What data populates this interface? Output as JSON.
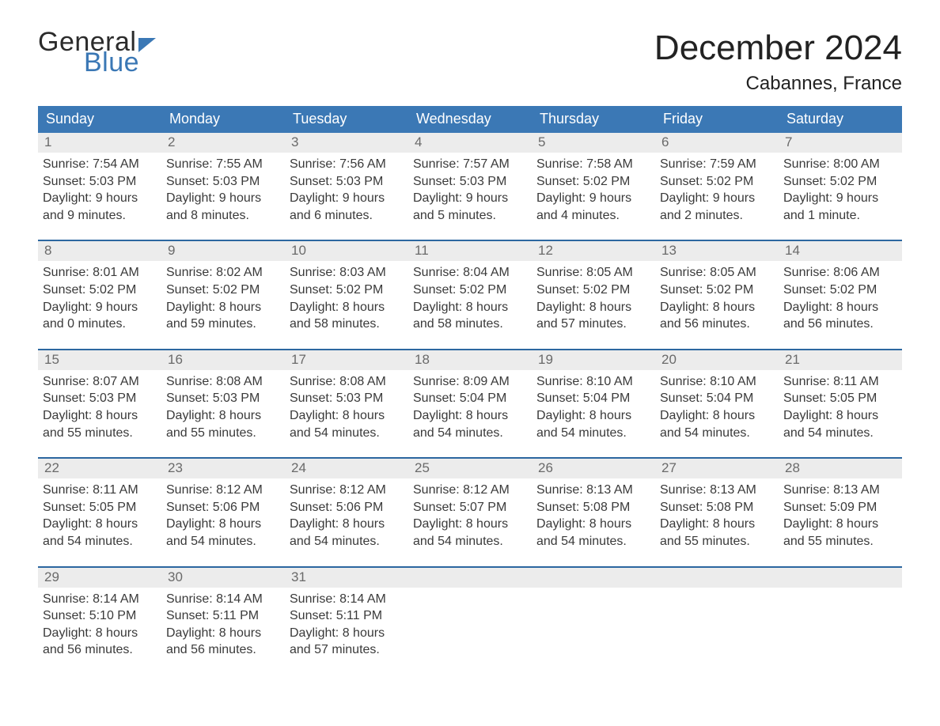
{
  "logo": {
    "line1": "General",
    "line2": "Blue"
  },
  "title": "December 2024",
  "location": "Cabannes, France",
  "colors": {
    "blue": "#3b78b5",
    "blue_border": "#2c67a0",
    "lightgray": "#ececec",
    "text": "#333333",
    "white": "#ffffff"
  },
  "font": {
    "family": "Arial",
    "title_size_pt": 33,
    "location_size_pt": 18,
    "dow_size_pt": 14,
    "body_size_pt": 12
  },
  "days_of_week": [
    "Sunday",
    "Monday",
    "Tuesday",
    "Wednesday",
    "Thursday",
    "Friday",
    "Saturday"
  ],
  "weeks": [
    [
      {
        "n": "1",
        "sunrise": "Sunrise: 7:54 AM",
        "sunset": "Sunset: 5:03 PM",
        "d1": "Daylight: 9 hours",
        "d2": "and 9 minutes."
      },
      {
        "n": "2",
        "sunrise": "Sunrise: 7:55 AM",
        "sunset": "Sunset: 5:03 PM",
        "d1": "Daylight: 9 hours",
        "d2": "and 8 minutes."
      },
      {
        "n": "3",
        "sunrise": "Sunrise: 7:56 AM",
        "sunset": "Sunset: 5:03 PM",
        "d1": "Daylight: 9 hours",
        "d2": "and 6 minutes."
      },
      {
        "n": "4",
        "sunrise": "Sunrise: 7:57 AM",
        "sunset": "Sunset: 5:03 PM",
        "d1": "Daylight: 9 hours",
        "d2": "and 5 minutes."
      },
      {
        "n": "5",
        "sunrise": "Sunrise: 7:58 AM",
        "sunset": "Sunset: 5:02 PM",
        "d1": "Daylight: 9 hours",
        "d2": "and 4 minutes."
      },
      {
        "n": "6",
        "sunrise": "Sunrise: 7:59 AM",
        "sunset": "Sunset: 5:02 PM",
        "d1": "Daylight: 9 hours",
        "d2": "and 2 minutes."
      },
      {
        "n": "7",
        "sunrise": "Sunrise: 8:00 AM",
        "sunset": "Sunset: 5:02 PM",
        "d1": "Daylight: 9 hours",
        "d2": "and 1 minute."
      }
    ],
    [
      {
        "n": "8",
        "sunrise": "Sunrise: 8:01 AM",
        "sunset": "Sunset: 5:02 PM",
        "d1": "Daylight: 9 hours",
        "d2": "and 0 minutes."
      },
      {
        "n": "9",
        "sunrise": "Sunrise: 8:02 AM",
        "sunset": "Sunset: 5:02 PM",
        "d1": "Daylight: 8 hours",
        "d2": "and 59 minutes."
      },
      {
        "n": "10",
        "sunrise": "Sunrise: 8:03 AM",
        "sunset": "Sunset: 5:02 PM",
        "d1": "Daylight: 8 hours",
        "d2": "and 58 minutes."
      },
      {
        "n": "11",
        "sunrise": "Sunrise: 8:04 AM",
        "sunset": "Sunset: 5:02 PM",
        "d1": "Daylight: 8 hours",
        "d2": "and 58 minutes."
      },
      {
        "n": "12",
        "sunrise": "Sunrise: 8:05 AM",
        "sunset": "Sunset: 5:02 PM",
        "d1": "Daylight: 8 hours",
        "d2": "and 57 minutes."
      },
      {
        "n": "13",
        "sunrise": "Sunrise: 8:05 AM",
        "sunset": "Sunset: 5:02 PM",
        "d1": "Daylight: 8 hours",
        "d2": "and 56 minutes."
      },
      {
        "n": "14",
        "sunrise": "Sunrise: 8:06 AM",
        "sunset": "Sunset: 5:02 PM",
        "d1": "Daylight: 8 hours",
        "d2": "and 56 minutes."
      }
    ],
    [
      {
        "n": "15",
        "sunrise": "Sunrise: 8:07 AM",
        "sunset": "Sunset: 5:03 PM",
        "d1": "Daylight: 8 hours",
        "d2": "and 55 minutes."
      },
      {
        "n": "16",
        "sunrise": "Sunrise: 8:08 AM",
        "sunset": "Sunset: 5:03 PM",
        "d1": "Daylight: 8 hours",
        "d2": "and 55 minutes."
      },
      {
        "n": "17",
        "sunrise": "Sunrise: 8:08 AM",
        "sunset": "Sunset: 5:03 PM",
        "d1": "Daylight: 8 hours",
        "d2": "and 54 minutes."
      },
      {
        "n": "18",
        "sunrise": "Sunrise: 8:09 AM",
        "sunset": "Sunset: 5:04 PM",
        "d1": "Daylight: 8 hours",
        "d2": "and 54 minutes."
      },
      {
        "n": "19",
        "sunrise": "Sunrise: 8:10 AM",
        "sunset": "Sunset: 5:04 PM",
        "d1": "Daylight: 8 hours",
        "d2": "and 54 minutes."
      },
      {
        "n": "20",
        "sunrise": "Sunrise: 8:10 AM",
        "sunset": "Sunset: 5:04 PM",
        "d1": "Daylight: 8 hours",
        "d2": "and 54 minutes."
      },
      {
        "n": "21",
        "sunrise": "Sunrise: 8:11 AM",
        "sunset": "Sunset: 5:05 PM",
        "d1": "Daylight: 8 hours",
        "d2": "and 54 minutes."
      }
    ],
    [
      {
        "n": "22",
        "sunrise": "Sunrise: 8:11 AM",
        "sunset": "Sunset: 5:05 PM",
        "d1": "Daylight: 8 hours",
        "d2": "and 54 minutes."
      },
      {
        "n": "23",
        "sunrise": "Sunrise: 8:12 AM",
        "sunset": "Sunset: 5:06 PM",
        "d1": "Daylight: 8 hours",
        "d2": "and 54 minutes."
      },
      {
        "n": "24",
        "sunrise": "Sunrise: 8:12 AM",
        "sunset": "Sunset: 5:06 PM",
        "d1": "Daylight: 8 hours",
        "d2": "and 54 minutes."
      },
      {
        "n": "25",
        "sunrise": "Sunrise: 8:12 AM",
        "sunset": "Sunset: 5:07 PM",
        "d1": "Daylight: 8 hours",
        "d2": "and 54 minutes."
      },
      {
        "n": "26",
        "sunrise": "Sunrise: 8:13 AM",
        "sunset": "Sunset: 5:08 PM",
        "d1": "Daylight: 8 hours",
        "d2": "and 54 minutes."
      },
      {
        "n": "27",
        "sunrise": "Sunrise: 8:13 AM",
        "sunset": "Sunset: 5:08 PM",
        "d1": "Daylight: 8 hours",
        "d2": "and 55 minutes."
      },
      {
        "n": "28",
        "sunrise": "Sunrise: 8:13 AM",
        "sunset": "Sunset: 5:09 PM",
        "d1": "Daylight: 8 hours",
        "d2": "and 55 minutes."
      }
    ],
    [
      {
        "n": "29",
        "sunrise": "Sunrise: 8:14 AM",
        "sunset": "Sunset: 5:10 PM",
        "d1": "Daylight: 8 hours",
        "d2": "and 56 minutes."
      },
      {
        "n": "30",
        "sunrise": "Sunrise: 8:14 AM",
        "sunset": "Sunset: 5:11 PM",
        "d1": "Daylight: 8 hours",
        "d2": "and 56 minutes."
      },
      {
        "n": "31",
        "sunrise": "Sunrise: 8:14 AM",
        "sunset": "Sunset: 5:11 PM",
        "d1": "Daylight: 8 hours",
        "d2": "and 57 minutes."
      },
      {
        "empty": true
      },
      {
        "empty": true
      },
      {
        "empty": true
      },
      {
        "empty": true
      }
    ]
  ]
}
